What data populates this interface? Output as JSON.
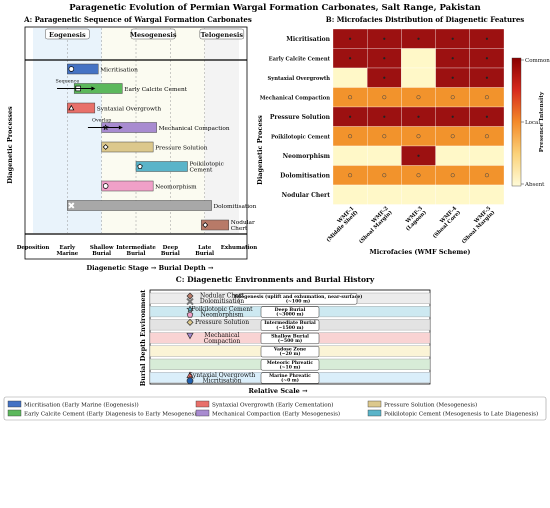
{
  "figure": {
    "title": "Paragenetic Evolution of Permian Wargal Formation Carbonates, Salt Range, Pakistan"
  },
  "panelA": {
    "title": "A: Paragenetic Sequence of Wargal Formation Carbonates",
    "ylabel": "Diagenetic Processes",
    "xlabel": "Diagenetic Stage → Burial Depth →",
    "stage_headers": [
      "Eogenesis",
      "Mesogenesis",
      "Telogenesis"
    ],
    "stage_ticks": [
      "Deposition",
      "Early\nMarine",
      "Shallow\nBurial",
      "Intermediate\nBurial",
      "Deep\nBurial",
      "Late\nBurial",
      "Exhumation"
    ],
    "annotations": [
      "Sequence",
      "Overlap"
    ]
  },
  "panelB": {
    "title": "B: Microfacies Distribution of Diagenetic Features",
    "ylabel": "Diagenetic Process",
    "xlabel": "Microfacies (WMF Scheme)",
    "colorbar_label": "Presence Intensity",
    "colorbar_ticks": [
      "Common",
      "Local",
      "Absent"
    ]
  },
  "panelC": {
    "title": "C: Diagenetic Environments and Burial History",
    "ylabel": "Burial Depth Environment",
    "xlabel": "Relative Scale →",
    "environment_labels": [
      "Telogenesis (uplift and exhumation, near-surface)\n(~100 m)",
      "Deep Burial\n(~3000 m)",
      "Intermediate Burial\n(~1500 m)",
      "Shallow Burial\n(~500 m)",
      "Vadose Zone\n(~20 m)",
      "Meteoric Phreatic\n(~10 m)",
      "Marine Phreatic\n(~0 m)"
    ],
    "marker_labels": [
      [
        "Nodular Chert",
        "Dolomitisation"
      ],
      [
        "Poikilotopic Cement",
        "Neomorphism"
      ],
      [
        "Pressure Solution"
      ],
      [
        "Mechanical",
        "Compaction"
      ],
      [],
      [],
      [
        "Syntaxial Overgrowth",
        "Micritisation"
      ]
    ]
  },
  "legend": [
    [
      "Micritisation (Early Marine (Eogenesis))",
      "Syntaxial Overgrowth (Early Cementation)",
      "Pressure Solution (Mesogenesis)"
    ],
    [
      "Early Calcite Cement (Early Diagenesis to Early Mesogenesis)",
      "Mechanical Compaction (Early Mesogenesis)",
      "Poikilotopic Cement (Mesogenesis to Late Diagenesis)"
    ]
  ],
  "colors": {
    "micritisation": "#4472c4",
    "early_calcite_cement": "#5cb85c",
    "syntaxial_overgrowth": "#e8706a",
    "mechanical_compaction": "#a88bd0",
    "pressure_solution": "#dcc88c",
    "poikilotopic_cement": "#5ab4c9",
    "neomorphism": "#f0a0c8",
    "dolomitisation": "#a8a8a8",
    "nodular_chert": "#b87a68"
  },
  "chart_data": [
    {
      "type": "bar",
      "orientation": "horizontal-gantt",
      "title": "A: Paragenetic Sequence of Wargal Formation Carbonates",
      "xlabel": "Diagenetic Stage → Burial Depth →",
      "ylabel": "Diagenetic Processes",
      "x_categories": [
        "Deposition",
        "Early Marine",
        "Shallow Burial",
        "Intermediate Burial",
        "Deep Burial",
        "Late Burial",
        "Exhumation"
      ],
      "xlim": [
        0,
        6
      ],
      "stage_ranges": [
        {
          "name": "Eogenesis",
          "start": 0,
          "end": 2
        },
        {
          "name": "Mesogenesis",
          "start": 2,
          "end": 5
        },
        {
          "name": "Telogenesis",
          "start": 5,
          "end": 6
        }
      ],
      "series": [
        {
          "name": "Micritisation",
          "start": 1.0,
          "end": 1.9,
          "marker": "circle"
        },
        {
          "name": "Early Calcite Cement",
          "start": 1.2,
          "end": 2.6,
          "marker": "square"
        },
        {
          "name": "Syntaxial Overgrowth",
          "start": 1.0,
          "end": 1.8,
          "marker": "triangle"
        },
        {
          "name": "Mechanical Compaction",
          "start": 2.0,
          "end": 3.6,
          "marker": "star"
        },
        {
          "name": "Pressure Solution",
          "start": 2.0,
          "end": 3.5,
          "marker": "diamond"
        },
        {
          "name": "Poikilotopic Cement",
          "start": 3.0,
          "end": 4.5,
          "marker": "pentagon"
        },
        {
          "name": "Neomorphism",
          "start": 2.0,
          "end": 3.5,
          "marker": "circle"
        },
        {
          "name": "Dolomitisation",
          "start": 1.0,
          "end": 5.2,
          "marker": "x"
        },
        {
          "name": "Nodular Chert",
          "start": 4.9,
          "end": 5.7,
          "marker": "diamond"
        }
      ]
    },
    {
      "type": "heatmap",
      "title": "B: Microfacies Distribution of Diagenetic Features",
      "xlabel": "Microfacies (WMF Scheme)",
      "ylabel": "Diagenetic Process",
      "colorbar_label": "Presence Intensity",
      "colorbar_ticks": [
        "Common",
        "Local",
        "Absent"
      ],
      "columns": [
        "WMF-1 (Middle Shelf)",
        "WMF-2 (Shoal Margin)",
        "WMF-3 (Lagoon)",
        "WMF-4 (Shoal Core)",
        "WMF-5 (Shoal Margin)"
      ],
      "rows": [
        "Micritisation",
        "Early Calcite Cement",
        "Syntaxial Overgrowth",
        "Mechanical Compaction",
        "Pressure Solution",
        "Poikilotopic Cement",
        "Neomorphism",
        "Dolomitisation",
        "Nodular Chert"
      ],
      "values": [
        [
          1.0,
          1.0,
          1.0,
          1.0,
          1.0
        ],
        [
          1.0,
          1.0,
          0.0,
          1.0,
          1.0
        ],
        [
          0.0,
          1.0,
          0.0,
          1.0,
          1.0
        ],
        [
          0.5,
          0.5,
          0.5,
          0.5,
          0.5
        ],
        [
          1.0,
          1.0,
          1.0,
          1.0,
          1.0
        ],
        [
          0.5,
          0.5,
          0.5,
          0.5,
          0.5
        ],
        [
          0.0,
          0.0,
          1.0,
          0.0,
          0.0
        ],
        [
          0.5,
          0.5,
          0.5,
          0.5,
          0.5
        ],
        [
          0.0,
          0.0,
          0.0,
          0.0,
          0.0
        ]
      ],
      "cell_markers": [
        [
          "x",
          "x",
          "x",
          "x",
          "x"
        ],
        [
          "x",
          "x",
          "",
          "x",
          "x"
        ],
        [
          "",
          "x",
          "",
          "x",
          "x"
        ],
        [
          "o",
          "o",
          "o",
          "o",
          "o"
        ],
        [
          "x",
          "x",
          "x",
          "x",
          "x"
        ],
        [
          "o",
          "o",
          "o",
          "o",
          "o"
        ],
        [
          "",
          "",
          "x",
          "",
          ""
        ],
        [
          "o",
          "o",
          "o",
          "o",
          "o"
        ],
        [
          "",
          "",
          "",
          "",
          ""
        ]
      ]
    },
    {
      "type": "bar",
      "orientation": "environment-bands",
      "title": "C: Diagenetic Environments and Burial History",
      "xlabel": "Relative Scale →",
      "ylabel": "Burial Depth Environment",
      "bands": [
        {
          "label": "Telogenesis (uplift and exhumation, near-surface)",
          "depth_m": 100
        },
        {
          "label": "Deep Burial",
          "depth_m": 3000
        },
        {
          "label": "Intermediate Burial",
          "depth_m": 1500
        },
        {
          "label": "Shallow Burial",
          "depth_m": 500
        },
        {
          "label": "Vadose Zone",
          "depth_m": 20
        },
        {
          "label": "Meteoric Phreatic",
          "depth_m": 10
        },
        {
          "label": "Marine Phreatic",
          "depth_m": 0
        }
      ]
    }
  ]
}
